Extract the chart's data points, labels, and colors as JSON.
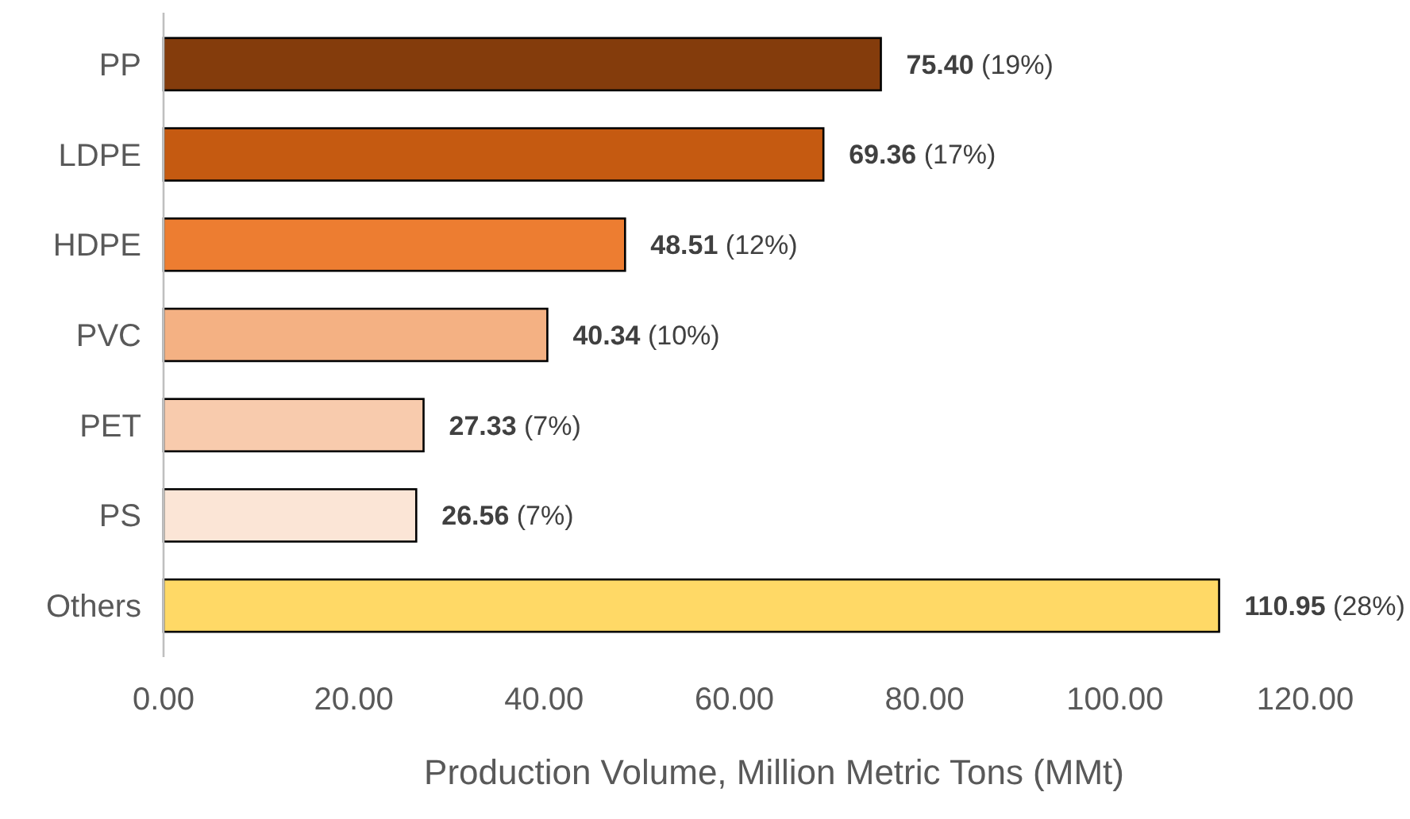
{
  "chart_data": {
    "type": "bar",
    "orientation": "horizontal",
    "xlabel": "Production Volume, Million Metric Tons (MMt)",
    "categories": [
      "PP",
      "LDPE",
      "HDPE",
      "PVC",
      "PET",
      "PS",
      "Others"
    ],
    "values": [
      75.4,
      69.36,
      48.51,
      40.34,
      27.33,
      26.56,
      110.95
    ],
    "colors": [
      "#843c0c",
      "#c55a11",
      "#ed7d31",
      "#f4b183",
      "#f8cbad",
      "#fbe5d6",
      "#ffd966"
    ],
    "value_labels": [
      "75.40 (19%)",
      "69.36 (17%)",
      "48.51 (12%)",
      "40.34 (10%)",
      "27.33 (7%)",
      "26.56 (7%)",
      "110.95 (28%)"
    ],
    "xlim": [
      0,
      120
    ],
    "xticks": [
      {
        "value": 0,
        "label": "0.00"
      },
      {
        "value": 20,
        "label": "20.00"
      },
      {
        "value": 40,
        "label": "40.00"
      },
      {
        "value": 60,
        "label": "60.00"
      },
      {
        "value": 80,
        "label": "80.00"
      },
      {
        "value": 100,
        "label": "100.00"
      },
      {
        "value": 120,
        "label": "120.00"
      }
    ],
    "grid": false
  }
}
